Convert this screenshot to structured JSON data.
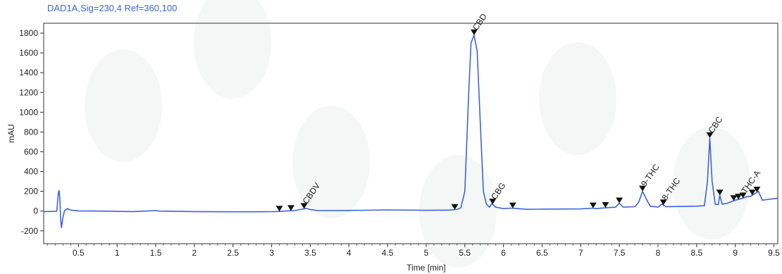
{
  "chart_data": {
    "type": "line",
    "title": "DAD1A,Sig=230,4  Ref=360,100",
    "xlabel": "Time [min]",
    "ylabel": "mAU",
    "xlim": [
      0.05,
      9.55
    ],
    "ylim": [
      -330,
      1900
    ],
    "x_ticks": [
      0.5,
      1,
      1.5,
      2,
      2.5,
      3,
      3.5,
      4,
      4.5,
      5,
      5.5,
      6,
      6.5,
      7,
      7.5,
      8,
      8.5,
      9,
      9.5
    ],
    "y_ticks": [
      -200,
      0,
      200,
      400,
      600,
      800,
      1000,
      1200,
      1400,
      1600,
      1800
    ],
    "grid": false,
    "line_color": "#3d64d8",
    "marker_color": "#111111",
    "series": [
      {
        "values": [
          [
            0.05,
            -5
          ],
          [
            0.2,
            -3
          ],
          [
            0.22,
            0
          ],
          [
            0.24,
            180
          ],
          [
            0.25,
            210
          ],
          [
            0.26,
            120
          ],
          [
            0.27,
            -80
          ],
          [
            0.28,
            -170
          ],
          [
            0.3,
            -60
          ],
          [
            0.32,
            5
          ],
          [
            0.36,
            25
          ],
          [
            0.4,
            10
          ],
          [
            0.5,
            2
          ],
          [
            0.8,
            0
          ],
          [
            1.0,
            -3
          ],
          [
            1.2,
            -5
          ],
          [
            1.5,
            5
          ],
          [
            1.55,
            0
          ],
          [
            2.0,
            -5
          ],
          [
            2.5,
            -7
          ],
          [
            3.0,
            -6
          ],
          [
            3.1,
            -4
          ],
          [
            3.2,
            2
          ],
          [
            3.3,
            5
          ],
          [
            3.4,
            20
          ],
          [
            3.45,
            28
          ],
          [
            3.5,
            15
          ],
          [
            3.6,
            5
          ],
          [
            4.0,
            6
          ],
          [
            4.5,
            12
          ],
          [
            5.0,
            8
          ],
          [
            5.3,
            10
          ],
          [
            5.4,
            16
          ],
          [
            5.45,
            35
          ],
          [
            5.5,
            200
          ],
          [
            5.55,
            1200
          ],
          [
            5.58,
            1700
          ],
          [
            5.62,
            1780
          ],
          [
            5.66,
            1620
          ],
          [
            5.7,
            900
          ],
          [
            5.74,
            200
          ],
          [
            5.78,
            70
          ],
          [
            5.82,
            40
          ],
          [
            5.85,
            75
          ],
          [
            5.9,
            40
          ],
          [
            6.0,
            25
          ],
          [
            6.1,
            30
          ],
          [
            6.15,
            28
          ],
          [
            6.3,
            18
          ],
          [
            6.5,
            20
          ],
          [
            7.0,
            22
          ],
          [
            7.15,
            30
          ],
          [
            7.2,
            25
          ],
          [
            7.3,
            32
          ],
          [
            7.45,
            40
          ],
          [
            7.5,
            80
          ],
          [
            7.55,
            40
          ],
          [
            7.7,
            45
          ],
          [
            7.75,
            90
          ],
          [
            7.8,
            200
          ],
          [
            7.85,
            120
          ],
          [
            7.9,
            50
          ],
          [
            8.0,
            40
          ],
          [
            8.05,
            70
          ],
          [
            8.1,
            45
          ],
          [
            8.5,
            50
          ],
          [
            8.6,
            55
          ],
          [
            8.64,
            300
          ],
          [
            8.67,
            740
          ],
          [
            8.7,
            300
          ],
          [
            8.74,
            70
          ],
          [
            8.78,
            65
          ],
          [
            8.8,
            160
          ],
          [
            8.83,
            70
          ],
          [
            8.9,
            80
          ],
          [
            8.95,
            95
          ],
          [
            9.0,
            110
          ],
          [
            9.05,
            120
          ],
          [
            9.1,
            130
          ],
          [
            9.15,
            145
          ],
          [
            9.2,
            150
          ],
          [
            9.25,
            175
          ],
          [
            9.3,
            200
          ],
          [
            9.35,
            110
          ],
          [
            9.4,
            115
          ],
          [
            9.5,
            125
          ],
          [
            9.55,
            130
          ]
        ]
      }
    ],
    "peak_markers": [
      3.1,
      3.25,
      3.42,
      5.37,
      5.62,
      5.86,
      6.12,
      7.16,
      7.32,
      7.5,
      7.8,
      8.07,
      8.67,
      8.8,
      8.98,
      9.04,
      9.1,
      9.22,
      9.28
    ],
    "annotations": [
      {
        "x": 3.42,
        "text": "CBDV"
      },
      {
        "x": 5.62,
        "text": "CBD"
      },
      {
        "x": 5.86,
        "text": "CBG"
      },
      {
        "x": 7.8,
        "text": "9-THC"
      },
      {
        "x": 8.07,
        "text": "8-THC"
      },
      {
        "x": 8.67,
        "text": "CBC"
      },
      {
        "x": 9.1,
        "text": "THC-A"
      }
    ]
  }
}
